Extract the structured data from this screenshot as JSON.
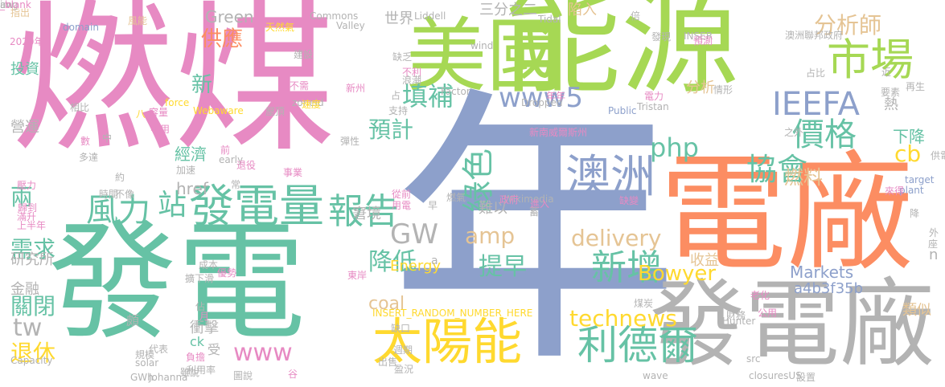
{
  "palette": {
    "pink": "#e78ac3",
    "green": "#a6d854",
    "teal": "#66c2a5",
    "blue": "#8da0cb",
    "orange": "#fc8d62",
    "gray": "#b3b3b3",
    "yellow": "#ffd92f",
    "tan": "#e5c494"
  },
  "words": [
    {
      "text": "燃煤",
      "color": "pink",
      "rot": false
    },
    {
      "text": "能源",
      "color": "green",
      "rot": false
    },
    {
      "text": "美國",
      "color": "green",
      "rot": false
    },
    {
      "text": "年",
      "color": "blue",
      "rot": false
    },
    {
      "text": "電廠",
      "color": "orange",
      "rot": false
    },
    {
      "text": "發電",
      "color": "teal",
      "rot": false
    },
    {
      "text": "發電廠",
      "color": "gray",
      "rot": false
    },
    {
      "text": "發電量",
      "color": "teal",
      "rot": false
    },
    {
      "text": "太陽能",
      "color": "yellow",
      "rot": false
    },
    {
      "text": "市場",
      "color": "green",
      "rot": false
    },
    {
      "text": "IEEFA",
      "color": "blue",
      "rot": false
    },
    {
      "text": "價格",
      "color": "teal",
      "rot": false
    },
    {
      "text": "澳洲",
      "color": "blue",
      "rot": false
    },
    {
      "text": "利德爾",
      "color": "teal",
      "rot": false
    },
    {
      "text": "新增",
      "color": "teal",
      "rot": false
    },
    {
      "text": "報告",
      "color": "teal",
      "rot": false
    },
    {
      "text": "風力",
      "color": "teal",
      "rot": false
    },
    {
      "text": "站",
      "color": "teal",
      "rot": false
    },
    {
      "text": "綠色",
      "color": "teal",
      "rot": true
    },
    {
      "text": "協會",
      "color": "teal",
      "rot": false
    },
    {
      "text": "php",
      "color": "teal",
      "rot": false
    },
    {
      "text": "www5",
      "color": "blue",
      "rot": false
    },
    {
      "text": "填補",
      "color": "teal",
      "rot": false
    },
    {
      "text": "預計",
      "color": "teal",
      "rot": false
    },
    {
      "text": "分析師",
      "color": "tan",
      "rot": false
    },
    {
      "text": "GW",
      "color": "gray",
      "rot": false
    },
    {
      "text": "amp",
      "color": "tan",
      "rot": false
    },
    {
      "text": "delivery",
      "color": "tan",
      "rot": false
    },
    {
      "text": "technews",
      "color": "yellow",
      "rot": false
    },
    {
      "text": "www",
      "color": "pink",
      "rot": false
    },
    {
      "text": "降低",
      "color": "teal",
      "rot": false
    },
    {
      "text": "提早",
      "color": "teal",
      "rot": false
    },
    {
      "text": "Bowyer",
      "color": "yellow",
      "rot": false
    },
    {
      "text": "coal",
      "color": "tan",
      "rot": false
    },
    {
      "text": "cb",
      "color": "yellow",
      "rot": false
    },
    {
      "text": "燃料",
      "color": "tan",
      "rot": false
    },
    {
      "text": "下降",
      "color": "teal",
      "rot": false
    },
    {
      "text": "供應",
      "color": "orange",
      "rot": false
    },
    {
      "text": "新",
      "color": "teal",
      "rot": false
    },
    {
      "text": "需求",
      "color": "teal",
      "rot": false
    },
    {
      "text": "兩",
      "color": "teal",
      "rot": false
    },
    {
      "text": "關閉",
      "color": "teal",
      "rot": false
    },
    {
      "text": "退休",
      "color": "yellow",
      "rot": false
    },
    {
      "text": "tw",
      "color": "gray",
      "rot": false
    },
    {
      "text": "投資",
      "color": "teal",
      "rot": false
    },
    {
      "text": "經濟",
      "color": "teal",
      "rot": false
    },
    {
      "text": "href",
      "color": "gray",
      "rot": false
    },
    {
      "text": "Green",
      "color": "gray",
      "rot": false
    },
    {
      "text": "世界",
      "color": "gray",
      "rot": false
    },
    {
      "text": "三分之二",
      "color": "gray",
      "rot": false
    },
    {
      "text": "陷入",
      "color": "tan",
      "rot": false
    },
    {
      "text": "熱",
      "color": "gray",
      "rot": false
    },
    {
      "text": "分析",
      "color": "tan",
      "rot": false
    },
    {
      "text": "Markets",
      "color": "blue",
      "rot": false
    },
    {
      "text": "收益",
      "color": "tan",
      "rot": false
    },
    {
      "text": "a4b3f35b",
      "color": "blue",
      "rot": false
    },
    {
      "text": "類似",
      "color": "tan",
      "rot": false
    },
    {
      "text": "n",
      "color": "gray",
      "rot": false
    },
    {
      "text": "Energy",
      "color": "yellow",
      "rot": false
    },
    {
      "text": "窘境",
      "color": "gray",
      "rot": false
    },
    {
      "text": "難以",
      "color": "gray",
      "rot": false
    },
    {
      "text": "營運",
      "color": "gray",
      "rot": false
    },
    {
      "text": "研究所",
      "color": "gray",
      "rot": false
    },
    {
      "text": "金融",
      "color": "gray",
      "rot": false
    },
    {
      "text": "衝擊",
      "color": "gray",
      "rot": false
    },
    {
      "text": "ck",
      "color": "teal",
      "rot": false
    },
    {
      "text": "受",
      "color": "gray",
      "rot": false
    },
    {
      "text": "頗",
      "color": "gray",
      "rot": false
    },
    {
      "text": "a",
      "color": "gray",
      "rot": false
    },
    {
      "text": "INSERT_RANDOM_NUMBER_HERE",
      "color": "yellow",
      "rot": false
    },
    {
      "text": "2020年",
      "color": "pink",
      "rot": false
    },
    {
      "text": "Capacity",
      "color": "gray",
      "rot": false
    },
    {
      "text": "solar",
      "color": "gray",
      "rot": false
    },
    {
      "text": "GWh",
      "color": "gray",
      "rot": false
    },
    {
      "text": "Johanna",
      "color": "gray",
      "rot": false
    },
    {
      "text": "Liddell",
      "color": "gray",
      "rot": false
    },
    {
      "text": "Commons",
      "color": "gray",
      "rot": false
    },
    {
      "text": "Valley",
      "color": "gray",
      "rot": false
    },
    {
      "text": "domain",
      "color": "blue",
      "rot": false
    },
    {
      "text": "Tidal",
      "color": "gray",
      "rot": false
    },
    {
      "text": "wind",
      "color": "gray",
      "rot": false
    },
    {
      "text": "Dropped",
      "color": "gray",
      "rot": false
    },
    {
      "text": "Public",
      "color": "blue",
      "rot": false
    },
    {
      "text": "Tristan",
      "color": "gray",
      "rot": false
    },
    {
      "text": "Factor",
      "color": "gray",
      "rot": false
    },
    {
      "text": "Wikimedia",
      "color": "gray",
      "rot": false
    },
    {
      "text": "force",
      "color": "yellow",
      "rot": false
    },
    {
      "text": "Webaware",
      "color": "yellow",
      "rot": false
    },
    {
      "text": "early",
      "color": "gray",
      "rot": false
    },
    {
      "text": "zoneid",
      "color": "gray",
      "rot": false
    },
    {
      "text": "Hunter",
      "color": "gray",
      "rot": false
    },
    {
      "text": "wave",
      "color": "gray",
      "rot": false
    },
    {
      "text": "src",
      "color": "gray",
      "rot": false
    },
    {
      "text": "closuresUS",
      "color": "gray",
      "rot": false
    },
    {
      "text": "target",
      "color": "blue",
      "rot": false
    },
    {
      "text": "plant",
      "color": "blue",
      "rot": false
    },
    {
      "text": "INSER",
      "color": "gray",
      "rot": false
    },
    {
      "text": "澳洲聯邦政府",
      "color": "gray",
      "rot": false
    },
    {
      "text": "新南威爾斯州",
      "color": "pink",
      "rot": false
    },
    {
      "text": "指出",
      "color": "tan",
      "rot": false
    },
    {
      "text": "風能",
      "color": "tan",
      "rot": false
    },
    {
      "text": "天然氣",
      "color": "yellow",
      "rot": false
    },
    {
      "text": "建設",
      "color": "gray",
      "rot": false
    },
    {
      "text": "缺乏",
      "color": "gray",
      "rot": false
    },
    {
      "text": "倍",
      "color": "gray",
      "rot": false
    },
    {
      "text": "發現",
      "color": "gray",
      "rot": false
    },
    {
      "text": "預測",
      "color": "pink",
      "rot": false
    },
    {
      "text": "近",
      "color": "gray",
      "rot": false
    },
    {
      "text": "占比",
      "color": "gray",
      "rot": false
    },
    {
      "text": "再生",
      "color": "gray",
      "rot": false
    },
    {
      "text": "要素",
      "color": "gray",
      "rot": false
    },
    {
      "text": "情形",
      "color": "gray",
      "rot": false
    },
    {
      "text": "不利",
      "color": "pink",
      "rot": false
    },
    {
      "text": "浪潮",
      "color": "gray",
      "rot": false
    },
    {
      "text": "新州",
      "color": "pink",
      "rot": false
    },
    {
      "text": "不需",
      "color": "pink",
      "rot": false
    },
    {
      "text": "速度",
      "color": "yellow",
      "rot": false
    },
    {
      "text": "屋頂",
      "color": "gray",
      "rot": false
    },
    {
      "text": "支持",
      "color": "gray",
      "rot": false
    },
    {
      "text": "占",
      "color": "gray",
      "rot": false
    },
    {
      "text": "相比",
      "color": "gray",
      "rot": false
    },
    {
      "text": "容量",
      "color": "pink",
      "rot": false
    },
    {
      "text": "不用",
      "color": "pink",
      "rot": false
    },
    {
      "text": "中",
      "color": "gray",
      "rot": false
    },
    {
      "text": "八",
      "color": "yellow",
      "rot": false
    },
    {
      "text": "多達",
      "color": "gray",
      "rot": false
    },
    {
      "text": "壓力",
      "color": "pink",
      "rot": false
    },
    {
      "text": "歸到",
      "color": "pink",
      "rot": false
    },
    {
      "text": "彈性",
      "color": "gray",
      "rot": false
    },
    {
      "text": "前",
      "color": "pink",
      "rot": false
    },
    {
      "text": "加速",
      "color": "gray",
      "rot": false
    },
    {
      "text": "退役",
      "color": "pink",
      "rot": false
    },
    {
      "text": "約",
      "color": "gray",
      "rot": false
    },
    {
      "text": "時間",
      "color": "gray",
      "rot": false
    },
    {
      "text": "不像",
      "color": "gray",
      "rot": false
    },
    {
      "text": "事業",
      "color": "pink",
      "rot": false
    },
    {
      "text": "從前",
      "color": "pink",
      "rot": false
    },
    {
      "text": "用電",
      "color": "pink",
      "rot": false
    },
    {
      "text": "早",
      "color": "gray",
      "rot": false
    },
    {
      "text": "政府",
      "color": "pink",
      "rot": false
    },
    {
      "text": "進入",
      "color": "pink",
      "rot": false
    },
    {
      "text": "蓄",
      "color": "gray",
      "rot": false
    },
    {
      "text": "燃氣",
      "color": "gray",
      "rot": false
    },
    {
      "text": "之外",
      "color": "gray",
      "rot": false
    },
    {
      "text": "供電",
      "color": "gray",
      "rot": false
    },
    {
      "text": "來得",
      "color": "pink",
      "rot": false
    },
    {
      "text": "降",
      "color": "gray",
      "rot": false
    },
    {
      "text": "座",
      "color": "gray",
      "rot": false
    },
    {
      "text": "外",
      "color": "gray",
      "rot": false
    },
    {
      "text": "老化",
      "color": "pink",
      "rot": false
    },
    {
      "text": "公用",
      "color": "pink",
      "rot": false
    },
    {
      "text": "財務",
      "color": "gray",
      "rot": false
    },
    {
      "text": "煤炭",
      "color": "gray",
      "rot": false
    },
    {
      "text": "滿升",
      "color": "pink",
      "rot": false
    },
    {
      "text": "上半年",
      "color": "pink",
      "rot": false
    },
    {
      "text": "擴下滑",
      "color": "gray",
      "rot": false
    },
    {
      "text": "缺口",
      "color": "gray",
      "rot": false
    },
    {
      "text": "東岸",
      "color": "pink",
      "rot": false
    },
    {
      "text": "週期",
      "color": "gray",
      "rot": false
    },
    {
      "text": "出售",
      "color": "gray",
      "rot": false
    },
    {
      "text": "盈況",
      "color": "gray",
      "rot": false
    },
    {
      "text": "利用率",
      "color": "gray",
      "rot": false
    },
    {
      "text": "負擔",
      "color": "pink",
      "rot": false
    },
    {
      "text": "規模",
      "color": "gray",
      "rot": false
    },
    {
      "text": "圖說",
      "color": "gray",
      "rot": false
    },
    {
      "text": "谷",
      "color": "pink",
      "rot": false
    },
    {
      "text": "設置",
      "color": "gray",
      "rot": false
    },
    {
      "text": "佔",
      "color": "gray",
      "rot": false
    },
    {
      "text": "月",
      "color": "pink",
      "rot": false
    },
    {
      "text": "雖說",
      "color": "gray",
      "rot": false
    },
    {
      "text": "代表",
      "color": "gray",
      "rot": false
    },
    {
      "text": "成本",
      "color": "gray",
      "rot": false
    },
    {
      "text": "優勢",
      "color": "pink",
      "rot": false
    },
    {
      "text": "缺變",
      "color": "pink",
      "rot": false
    },
    {
      "text": "電力",
      "color": "pink",
      "rot": false
    },
    {
      "text": "年年",
      "color": "pink",
      "rot": false
    },
    {
      "text": "數",
      "color": "pink",
      "rot": false
    },
    {
      "text": "常",
      "color": "gray",
      "rot": false
    },
    {
      "text": "img",
      "color": "gray",
      "rot": false
    },
    {
      "text": "aw",
      "color": "gray",
      "rot": false
    },
    {
      "text": "_blank",
      "color": "pink",
      "rot": false
    }
  ]
}
